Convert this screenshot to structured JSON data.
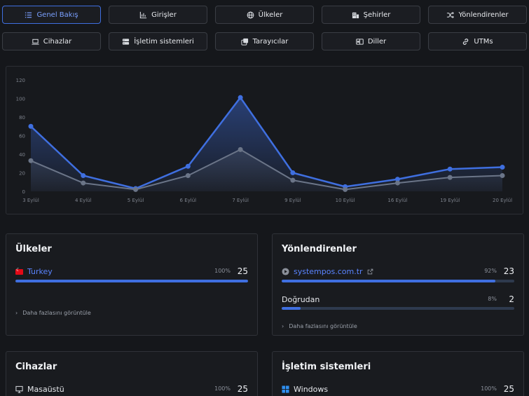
{
  "tabs": [
    {
      "label": "Genel Bakış",
      "icon": "list-icon",
      "active": true
    },
    {
      "label": "Girişler",
      "icon": "bar-chart-icon",
      "active": false
    },
    {
      "label": "Ülkeler",
      "icon": "globe-icon",
      "active": false
    },
    {
      "label": "Şehirler",
      "icon": "building-icon",
      "active": false
    },
    {
      "label": "Yönlendirenler",
      "icon": "shuffle-icon",
      "active": false
    },
    {
      "label": "Cihazlar",
      "icon": "laptop-icon",
      "active": false
    },
    {
      "label": "İşletim sistemleri",
      "icon": "server-icon",
      "active": false
    },
    {
      "label": "Tarayıcılar",
      "icon": "browser-icon",
      "active": false
    },
    {
      "label": "Diller",
      "icon": "language-icon",
      "active": false
    },
    {
      "label": "UTMs",
      "icon": "link-icon",
      "active": false
    }
  ],
  "chart_data": {
    "type": "area",
    "categories": [
      "3 Eylül",
      "4 Eylül",
      "5 Eylül",
      "6 Eylül",
      "7 Eylül",
      "9 Eylül",
      "10 Eylül",
      "16 Eylül",
      "19 Eylül",
      "20 Eylül"
    ],
    "series": [
      {
        "values": [
          70,
          17,
          3,
          27,
          101,
          20,
          5,
          13,
          24,
          26
        ],
        "color": "#3f6fe0"
      },
      {
        "values": [
          33,
          9,
          2,
          17,
          45,
          12,
          2,
          9,
          15,
          17
        ],
        "color": "#6b7588"
      }
    ],
    "yticks": [
      0,
      20,
      40,
      60,
      80,
      100,
      120
    ],
    "ylim": [
      0,
      120
    ],
    "grid": false,
    "xlabel": "",
    "ylabel": ""
  },
  "cards": {
    "countries": {
      "title": "Ülkeler",
      "rows": [
        {
          "label": "Turkey",
          "pct": "100%",
          "count": "25",
          "fraction": 1.0
        }
      ],
      "more": "Daha fazlasını görüntüle"
    },
    "referrers": {
      "title": "Yönlendirenler",
      "rows": [
        {
          "label": "systempos.com.tr",
          "pct": "92%",
          "count": "23",
          "fraction": 0.92
        },
        {
          "label": "Doğrudan",
          "pct": "8%",
          "count": "2",
          "fraction": 0.08
        }
      ],
      "more": "Daha fazlasını görüntüle"
    },
    "devices": {
      "title": "Cihazlar",
      "rows": [
        {
          "label": "Masaüstü",
          "pct": "100%",
          "count": "25",
          "fraction": 1.0
        }
      ]
    },
    "os": {
      "title": "İşletim sistemleri",
      "rows": [
        {
          "label": "Windows",
          "pct": "100%",
          "count": "25",
          "fraction": 1.0
        }
      ]
    }
  }
}
